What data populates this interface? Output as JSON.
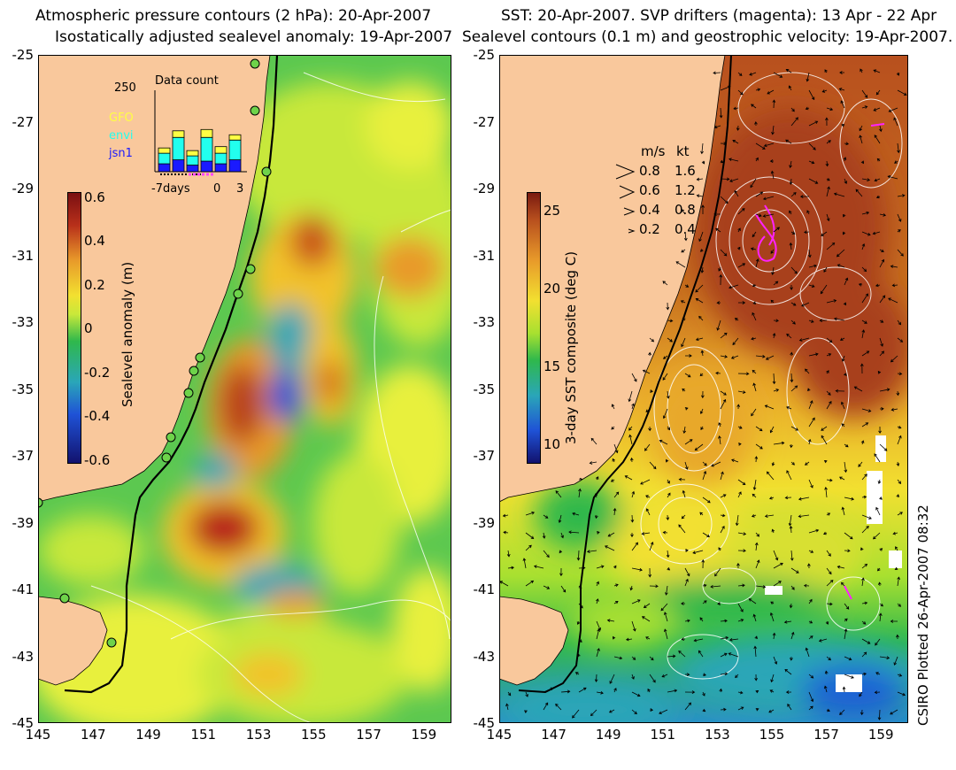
{
  "left_panel": {
    "title_line1": "Atmospheric pressure contours (2 hPa): 20-Apr-2007",
    "title_line2": "Isostatically adjusted sealevel anomaly: 19-Apr-2007",
    "colorbar": {
      "label": "Sealevel anomaly (m)",
      "ticks": [
        "0.6",
        "0.4",
        "0.2",
        "0",
        "-0.2",
        "-0.4",
        "-0.6"
      ],
      "colors": [
        "#7a0f12",
        "#d2691e",
        "#f2c22c",
        "#e8f03c",
        "#2fb84c",
        "#2aa6b8",
        "#1f52d6",
        "#12126e"
      ]
    },
    "inset": {
      "title": "Data count",
      "y_max_label": "250",
      "legend": [
        {
          "name": "GFO",
          "color": "#ffff44"
        },
        {
          "name": "envi",
          "color": "#22ffee"
        },
        {
          "name": "jsn1",
          "color": "#1a1aff"
        }
      ],
      "x_labels": [
        "-7days",
        "0",
        "3"
      ],
      "bars": [
        {
          "jsn1": 30,
          "envi": 40,
          "gfo": 20
        },
        {
          "jsn1": 45,
          "envi": 85,
          "gfo": 25
        },
        {
          "jsn1": 25,
          "envi": 35,
          "gfo": 20
        },
        {
          "jsn1": 40,
          "envi": 90,
          "gfo": 30
        },
        {
          "jsn1": 30,
          "envi": 40,
          "gfo": 25
        },
        {
          "jsn1": 45,
          "envi": 75,
          "gfo": 20
        }
      ]
    },
    "sea_colors": {
      "base": "#5cc850",
      "mid": "#c8e83a",
      "land": "#f9c89c"
    }
  },
  "right_panel": {
    "title_line1": "SST: 20-Apr-2007. SVP drifters (magenta): 13 Apr - 22 Apr",
    "title_line2": "Sealevel contours (0.1 m) and geostrophic velocity: 19-Apr-2007.",
    "colorbar": {
      "label": "3-day SST composite (deg C)",
      "ticks": [
        "25",
        "20",
        "15",
        "10"
      ],
      "colors": [
        "#7a1a10",
        "#b8501e",
        "#e89a2a",
        "#f2e030",
        "#a8e030",
        "#2fb84c",
        "#2aa6b8",
        "#1f52d6",
        "#12126e"
      ]
    },
    "velocity_legend": {
      "header_ms": "m/s",
      "header_kt": "kt",
      "rows": [
        {
          "ms": "0.8",
          "kt": "1.6"
        },
        {
          "ms": "0.6",
          "kt": "1.2"
        },
        {
          "ms": "0.4",
          "kt": "0.8"
        },
        {
          "ms": "0.2",
          "kt": "0.4"
        }
      ]
    },
    "credit": "CSIRO Plotted 26-Apr-2007 08:32"
  },
  "axes": {
    "lat_labels": [
      "-25",
      "-27",
      "-29",
      "-31",
      "-33",
      "-35",
      "-37",
      "-39",
      "-41",
      "-43",
      "-45"
    ],
    "lon_labels": [
      "145",
      "147",
      "149",
      "151",
      "153",
      "155",
      "157",
      "159"
    ]
  }
}
